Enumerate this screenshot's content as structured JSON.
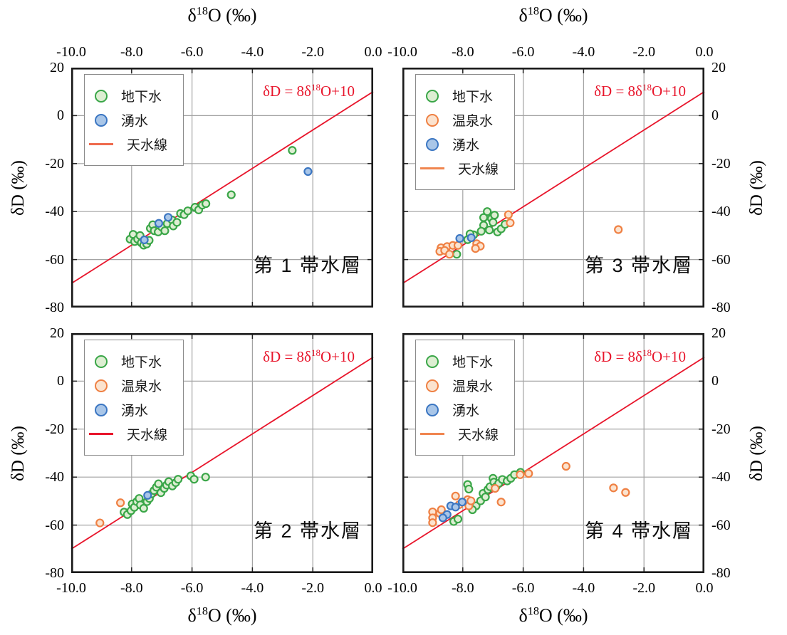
{
  "figure": {
    "x_axis_title": {
      "pre": "δ",
      "sup": "18",
      "post": "O (‰)"
    },
    "y_axis_title": "δD (‰)",
    "xlim": [
      -10,
      0
    ],
    "ylim": [
      -80,
      20
    ],
    "xticks": [
      -10,
      -8,
      -6,
      -4,
      -2,
      0
    ],
    "xtick_labels": [
      "-10.0",
      "-8.0",
      "-6.0",
      "-4.0",
      "-2.0",
      "0.0"
    ],
    "yticks": [
      20,
      0,
      -20,
      -40,
      -60,
      -80
    ],
    "ytick_labels": [
      "20",
      "0",
      "-20",
      "-40",
      "-60",
      "-80"
    ],
    "grid": true,
    "grid_color": "#a3a3a3",
    "frame_color": "#1a1a1a"
  },
  "colors": {
    "groundwater_stroke": "#3aa648",
    "groundwater_fill": "#ddeed2",
    "hotspring_stroke": "#ef8043",
    "hotspring_fill": "#fbe3cf",
    "spring_stroke": "#3b76c2",
    "spring_fill": "#a9c6e8",
    "meteoric_line": "#e8152b",
    "equation_red": "#e8152b"
  },
  "chart_data": [
    {
      "type": "scatter",
      "title": "第 1 帯水層",
      "position": "top-left",
      "x_axis_side": "top",
      "y_axis_side": "left",
      "xlabel": "δ18O (‰)",
      "ylabel": "δD (‰)",
      "annotation": {
        "pre": "δD = 8δ",
        "sup": "18",
        "post": "O+10",
        "color": "#e8152b"
      },
      "meteoric_line": {
        "label": "天水線",
        "slope": 8,
        "intercept": 10,
        "color": "#e8152b",
        "legend_color": "#ef6b4e"
      },
      "series": [
        {
          "name": "地下水",
          "stroke": "#3aa648",
          "fill": "#ddeed2",
          "points": [
            [
              -8.05,
              -51.5
            ],
            [
              -7.95,
              -49.5
            ],
            [
              -7.9,
              -52.5
            ],
            [
              -7.8,
              -51.5
            ],
            [
              -7.72,
              -50
            ],
            [
              -7.68,
              -53
            ],
            [
              -7.6,
              -54
            ],
            [
              -7.5,
              -53.5
            ],
            [
              -7.42,
              -52
            ],
            [
              -7.38,
              -47
            ],
            [
              -7.3,
              -45.5
            ],
            [
              -7.25,
              -48
            ],
            [
              -7.12,
              -48.5
            ],
            [
              -7.0,
              -46.5
            ],
            [
              -6.9,
              -48
            ],
            [
              -6.82,
              -45
            ],
            [
              -6.66,
              -43.5
            ],
            [
              -6.62,
              -46
            ],
            [
              -6.5,
              -44.5
            ],
            [
              -6.38,
              -40.8
            ],
            [
              -6.26,
              -41.3
            ],
            [
              -6.14,
              -39.7
            ],
            [
              -5.9,
              -38.2
            ],
            [
              -5.78,
              -39.3
            ],
            [
              -5.66,
              -37.3
            ],
            [
              -5.54,
              -36.7
            ],
            [
              -4.7,
              -33
            ],
            [
              -2.68,
              -14.5
            ]
          ]
        },
        {
          "name": "湧水",
          "stroke": "#3b76c2",
          "fill": "#a9c6e8",
          "points": [
            [
              -7.58,
              -51.8
            ],
            [
              -7.1,
              -44.9
            ],
            [
              -6.79,
              -42.4
            ],
            [
              -2.16,
              -23.3
            ]
          ]
        }
      ]
    },
    {
      "type": "scatter",
      "title": "第 2 帯水層",
      "position": "bottom-left",
      "x_axis_side": "bottom",
      "y_axis_side": "left",
      "xlabel": "δ18O (‰)",
      "ylabel": "δD (‰)",
      "annotation": {
        "pre": "δD = 8δ",
        "sup": "18",
        "post": "O+10",
        "color": "#e8152b"
      },
      "meteoric_line": {
        "label": "天水線",
        "slope": 8,
        "intercept": 10,
        "color": "#e8152b",
        "legend_color": "#e8152b"
      },
      "series": [
        {
          "name": "地下水",
          "stroke": "#3aa648",
          "fill": "#ddeed2",
          "points": [
            [
              -8.25,
              -54.6
            ],
            [
              -8.14,
              -55.6
            ],
            [
              -8.02,
              -54
            ],
            [
              -7.98,
              -51.2
            ],
            [
              -7.91,
              -52.6
            ],
            [
              -7.83,
              -50.2
            ],
            [
              -7.75,
              -48.9
            ],
            [
              -7.71,
              -51.6
            ],
            [
              -7.6,
              -53
            ],
            [
              -7.49,
              -50.2
            ],
            [
              -7.41,
              -48.9
            ],
            [
              -7.34,
              -47
            ],
            [
              -7.26,
              -45.6
            ],
            [
              -7.18,
              -44.2
            ],
            [
              -7.11,
              -42.8
            ],
            [
              -7.03,
              -46.5
            ],
            [
              -6.92,
              -44.7
            ],
            [
              -6.84,
              -43.3
            ],
            [
              -6.77,
              -41.9
            ],
            [
              -6.65,
              -43.7
            ],
            [
              -6.54,
              -42.3
            ],
            [
              -6.46,
              -40.9
            ],
            [
              -6.04,
              -39.5
            ],
            [
              -5.93,
              -40.9
            ],
            [
              -5.55,
              -40
            ]
          ]
        },
        {
          "name": "温泉水",
          "stroke": "#ef8043",
          "fill": "#fbe3cf",
          "points": [
            [
              -8.37,
              -50.7
            ],
            [
              -9.05,
              -59.1
            ]
          ]
        },
        {
          "name": "湧水",
          "stroke": "#3b76c2",
          "fill": "#a9c6e8",
          "points": [
            [
              -7.47,
              -47.6
            ]
          ]
        }
      ]
    },
    {
      "type": "scatter",
      "title": "第 3 帯水層",
      "position": "top-right",
      "x_axis_side": "top",
      "y_axis_side": "right",
      "xlabel": "δ18O (‰)",
      "ylabel": "δD (‰)",
      "annotation": {
        "pre": "δD = 8δ",
        "sup": "18",
        "post": "O+10",
        "color": "#e8152b"
      },
      "meteoric_line": {
        "label": "天水線",
        "slope": 8,
        "intercept": 10,
        "color": "#e8152b",
        "legend_color": "#f0854f"
      },
      "series": [
        {
          "name": "地下水",
          "stroke": "#3aa648",
          "fill": "#ddeed2",
          "points": [
            [
              -7.19,
              -40
            ],
            [
              -7.31,
              -42.5
            ],
            [
              -7.05,
              -43
            ],
            [
              -7.0,
              -44.5
            ],
            [
              -7.31,
              -45.7
            ],
            [
              -7.12,
              -47.7
            ],
            [
              -7.39,
              -48.2
            ],
            [
              -6.85,
              -48.5
            ],
            [
              -6.73,
              -47.2
            ],
            [
              -6.6,
              -45.3
            ],
            [
              -6.95,
              -41.5
            ],
            [
              -7.64,
              -49.7
            ],
            [
              -7.76,
              -49.3
            ],
            [
              -7.84,
              -51.7
            ],
            [
              -8.2,
              -57.8
            ]
          ]
        },
        {
          "name": "温泉水",
          "stroke": "#ef8043",
          "fill": "#fbe3cf",
          "points": [
            [
              -8.72,
              -55.1
            ],
            [
              -8.52,
              -54.6
            ],
            [
              -8.33,
              -54.1
            ],
            [
              -8.16,
              -54.1
            ],
            [
              -8.76,
              -56.6
            ],
            [
              -8.6,
              -56.2
            ],
            [
              -8.44,
              -57.8
            ],
            [
              -7.54,
              -53.4
            ],
            [
              -7.42,
              -54.4
            ],
            [
              -7.58,
              -55.4
            ],
            [
              -6.49,
              -41.3
            ],
            [
              -6.43,
              -44.7
            ],
            [
              -2.85,
              -47.5
            ]
          ]
        },
        {
          "name": "湧水",
          "stroke": "#3b76c2",
          "fill": "#a9c6e8",
          "points": [
            [
              -8.1,
              -51.2
            ],
            [
              -7.72,
              -50.9
            ]
          ]
        }
      ]
    },
    {
      "type": "scatter",
      "title": "第 4 帯水層",
      "position": "bottom-right",
      "x_axis_side": "bottom",
      "y_axis_side": "right",
      "xlabel": "δ18O (‰)",
      "ylabel": "δD (‰)",
      "annotation": {
        "pre": "δD = 8δ",
        "sup": "18",
        "post": "O+10",
        "color": "#e8152b"
      },
      "meteoric_line": {
        "label": "天水線",
        "slope": 8,
        "intercept": 10,
        "color": "#e8152b",
        "legend_color": "#f0854f"
      },
      "series": [
        {
          "name": "地下水",
          "stroke": "#3aa648",
          "fill": "#ddeed2",
          "points": [
            [
              -8.3,
              -58.5
            ],
            [
              -8.16,
              -57.5
            ],
            [
              -7.84,
              -43.1
            ],
            [
              -7.8,
              -45
            ],
            [
              -7.56,
              -52
            ],
            [
              -7.68,
              -53.6
            ],
            [
              -7.41,
              -49.9
            ],
            [
              -7.33,
              -46.8
            ],
            [
              -7.25,
              -48.3
            ],
            [
              -7.17,
              -45.2
            ],
            [
              -7.1,
              -44
            ],
            [
              -7.0,
              -40.5
            ],
            [
              -6.97,
              -42.1
            ],
            [
              -6.9,
              -44
            ],
            [
              -6.81,
              -42.6
            ],
            [
              -6.69,
              -41
            ],
            [
              -6.53,
              -41.6
            ],
            [
              -6.41,
              -40.5
            ],
            [
              -6.29,
              -39
            ],
            [
              -6.09,
              -38
            ]
          ]
        },
        {
          "name": "温泉水",
          "stroke": "#ef8043",
          "fill": "#fbe3cf",
          "points": [
            [
              -9.0,
              -54.5
            ],
            [
              -9.0,
              -57
            ],
            [
              -9.0,
              -59
            ],
            [
              -8.76,
              -55.1
            ],
            [
              -8.71,
              -53.6
            ],
            [
              -8.24,
              -47.9
            ],
            [
              -8.12,
              -51.5
            ],
            [
              -7.84,
              -49.4
            ],
            [
              -7.8,
              -52
            ],
            [
              -7.73,
              -49.9
            ],
            [
              -6.93,
              -44.7
            ],
            [
              -6.73,
              -50.4
            ],
            [
              -6.1,
              -39
            ],
            [
              -5.82,
              -38.5
            ],
            [
              -4.58,
              -35.5
            ],
            [
              -3.01,
              -44.5
            ],
            [
              -2.61,
              -46.4
            ]
          ]
        },
        {
          "name": "湧水",
          "stroke": "#3b76c2",
          "fill": "#a9c6e8",
          "points": [
            [
              -8.4,
              -52
            ],
            [
              -8.24,
              -52.5
            ],
            [
              -8.52,
              -55.6
            ],
            [
              -8.66,
              -57
            ],
            [
              -8.02,
              -50.4
            ]
          ]
        }
      ]
    }
  ]
}
